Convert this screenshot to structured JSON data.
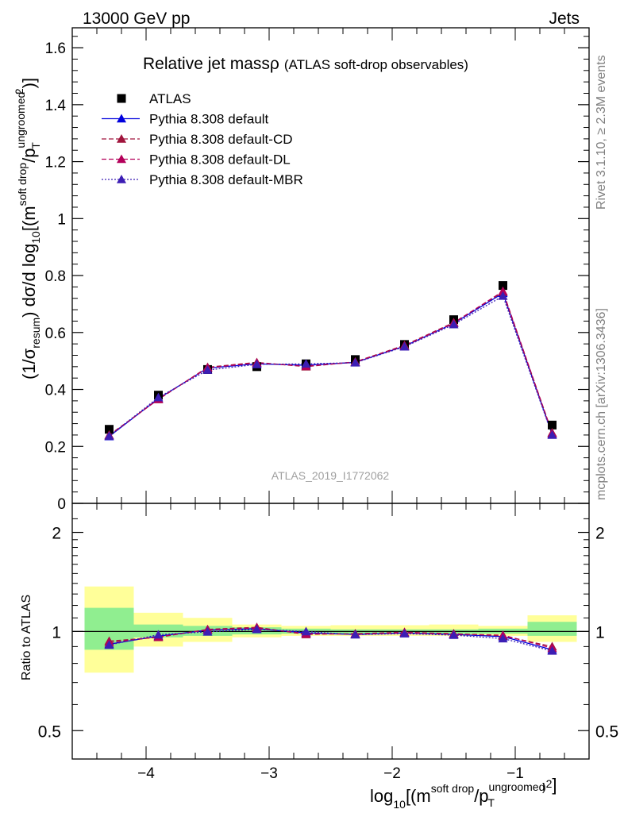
{
  "header": {
    "left": "13000 GeV pp",
    "right": "Jets"
  },
  "title": {
    "main": "Relative jet massρ",
    "sub": "(ATLAS soft-drop observables)"
  },
  "side_labels": {
    "rivet": "Rivet 3.1.10, ≥ 2.3M events",
    "mcplots": "mcplots.cern.ch [arXiv:1306.3436]"
  },
  "watermark": "ATLAS_2019_I1772062",
  "axes": {
    "ylabel_main": "(1/σresum) dσ/d log10[(msoft drop/pTungroomed)2]",
    "ylabel_ratio": "Ratio to ATLAS",
    "xlabel": "log10[(msoft drop/pTungroomed)2]"
  },
  "colors": {
    "data": "#000000",
    "default": "#0000dd",
    "cd": "#a0143c",
    "dl": "#b4005a",
    "mbr": "#3c1eb4",
    "band_inner": "#90ee90",
    "band_outer": "#ffff99"
  },
  "chart_data": [
    {
      "type": "scatter",
      "panel": "main",
      "xlim": [
        -4.6,
        -0.4
      ],
      "ylim": [
        0,
        1.67
      ],
      "yticks": [
        0,
        0.2,
        0.4,
        0.6,
        0.8,
        1,
        1.2,
        1.4,
        1.6
      ],
      "ytick_labels": [
        "0",
        "0.2",
        "0.4",
        "0.6",
        "0.8",
        "1",
        "1.2",
        "1.4",
        "1.6"
      ],
      "x": [
        -4.3,
        -3.9,
        -3.5,
        -3.1,
        -2.7,
        -2.3,
        -1.9,
        -1.5,
        -1.1,
        -0.7
      ],
      "bin_edges": [
        -4.5,
        -4.1,
        -3.7,
        -3.3,
        -2.9,
        -2.5,
        -2.1,
        -1.7,
        -1.3,
        -0.9,
        -0.5
      ],
      "series": [
        {
          "name": "ATLAS",
          "key": "data",
          "marker": "square",
          "line": "none",
          "values": [
            0.26,
            0.38,
            0.47,
            0.48,
            0.49,
            0.505,
            0.558,
            0.645,
            0.765,
            0.275
          ]
        },
        {
          "name": "Pythia 8.308 default",
          "key": "default",
          "marker": "triangle",
          "line": "solid",
          "values": [
            0.235,
            0.368,
            0.475,
            0.49,
            0.485,
            0.495,
            0.552,
            0.632,
            0.738,
            0.242
          ]
        },
        {
          "name": "Pythia 8.308 default-CD",
          "key": "cd",
          "marker": "triangle",
          "line": "dashed",
          "values": [
            0.24,
            0.365,
            0.478,
            0.495,
            0.48,
            0.497,
            0.555,
            0.635,
            0.742,
            0.248
          ]
        },
        {
          "name": "Pythia 8.308 default-DL",
          "key": "dl",
          "marker": "triangle",
          "line": "dashed",
          "values": [
            0.238,
            0.366,
            0.476,
            0.493,
            0.482,
            0.496,
            0.553,
            0.633,
            0.745,
            0.245
          ]
        },
        {
          "name": "Pythia 8.308 default-MBR",
          "key": "mbr",
          "marker": "triangle",
          "line": "dotted",
          "values": [
            0.236,
            0.372,
            0.468,
            0.488,
            0.49,
            0.494,
            0.55,
            0.628,
            0.728,
            0.24
          ]
        }
      ]
    },
    {
      "type": "scatter",
      "panel": "ratio",
      "ylog": true,
      "ylim": [
        0.41,
        2.45
      ],
      "yticks": [
        0.5,
        1,
        2
      ],
      "ytick_labels": [
        "0.5",
        "1",
        "2"
      ],
      "xticks": [
        -4,
        -3,
        -2,
        -1
      ],
      "xtick_labels": [
        "−4",
        "−3",
        "−2",
        "−1"
      ],
      "bands": {
        "inner": [
          [
            0.88,
            1.18
          ],
          [
            0.96,
            1.05
          ],
          [
            0.97,
            1.04
          ],
          [
            0.98,
            1.03
          ],
          [
            0.985,
            1.02
          ],
          [
            0.985,
            1.015
          ],
          [
            0.985,
            1.015
          ],
          [
            0.985,
            1.015
          ],
          [
            0.985,
            1.02
          ],
          [
            0.97,
            1.07
          ]
        ],
        "outer": [
          [
            0.75,
            1.37
          ],
          [
            0.9,
            1.14
          ],
          [
            0.93,
            1.1
          ],
          [
            0.96,
            1.05
          ],
          [
            0.97,
            1.04
          ],
          [
            0.97,
            1.045
          ],
          [
            0.97,
            1.045
          ],
          [
            0.97,
            1.05
          ],
          [
            0.97,
            1.04
          ],
          [
            0.93,
            1.12
          ]
        ]
      },
      "series": [
        {
          "name": "Pythia 8.308 default",
          "key": "default",
          "values": [
            0.915,
            0.968,
            1.01,
            1.02,
            0.99,
            0.98,
            0.99,
            0.98,
            0.965,
            0.88
          ]
        },
        {
          "name": "Pythia 8.308 default-CD",
          "key": "cd",
          "values": [
            0.935,
            0.96,
            1.015,
            1.03,
            0.98,
            0.985,
            0.995,
            0.985,
            0.97,
            0.9
          ]
        },
        {
          "name": "Pythia 8.308 default-DL",
          "key": "dl",
          "values": [
            0.925,
            0.963,
            1.012,
            1.025,
            0.985,
            0.982,
            0.992,
            0.982,
            0.975,
            0.89
          ]
        },
        {
          "name": "Pythia 8.308 default-MBR",
          "key": "mbr",
          "values": [
            0.91,
            0.978,
            0.998,
            1.015,
            1.0,
            0.978,
            0.985,
            0.975,
            0.952,
            0.873
          ]
        }
      ]
    }
  ]
}
